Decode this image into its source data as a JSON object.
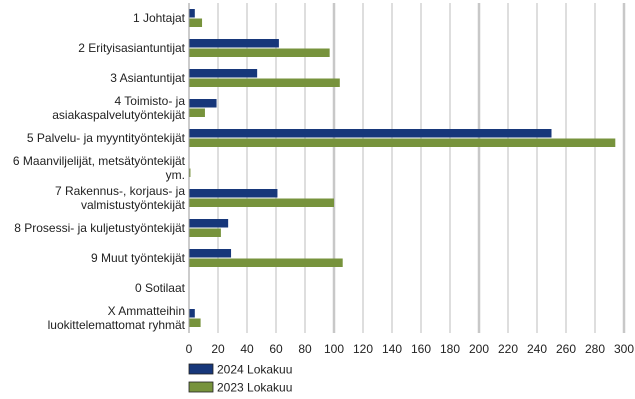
{
  "chart_data": {
    "type": "bar",
    "orientation": "horizontal",
    "categories": [
      [
        "1 Johtajat"
      ],
      [
        "2 Erityisasiantuntijat"
      ],
      [
        "3 Asiantuntijat"
      ],
      [
        "4 Toimisto- ja",
        "asiakaspalvelutyöntekijät"
      ],
      [
        "5 Palvelu- ja myyntityöntekijät"
      ],
      [
        "6 Maanviljelijät, metsätyöntekijät",
        "ym."
      ],
      [
        "7 Rakennus-, korjaus- ja",
        "valmistustyöntekijät"
      ],
      [
        "8 Prosessi- ja kuljetustyöntekijät"
      ],
      [
        "9 Muut työntekijät"
      ],
      [
        "0 Sotilaat"
      ],
      [
        "X Ammatteihin",
        "luokittelemattomat ryhmät"
      ]
    ],
    "series": [
      {
        "name": "2024 Lokakuu",
        "color": "#17377a",
        "values": [
          4,
          62,
          47,
          19,
          250,
          0,
          61,
          27,
          29,
          0,
          4
        ]
      },
      {
        "name": "2023 Lokakuu",
        "color": "#77933c",
        "values": [
          9,
          97,
          104,
          11,
          294,
          1,
          100,
          22,
          106,
          0,
          8
        ]
      }
    ],
    "xlim": [
      0,
      300
    ],
    "xticks": [
      "0",
      "20",
      "40",
      "60",
      "80",
      "100",
      "120",
      "140",
      "160",
      "180",
      "200",
      "220",
      "240",
      "260",
      "280",
      "300"
    ],
    "grid": true,
    "legend_position": "bottom-left"
  }
}
